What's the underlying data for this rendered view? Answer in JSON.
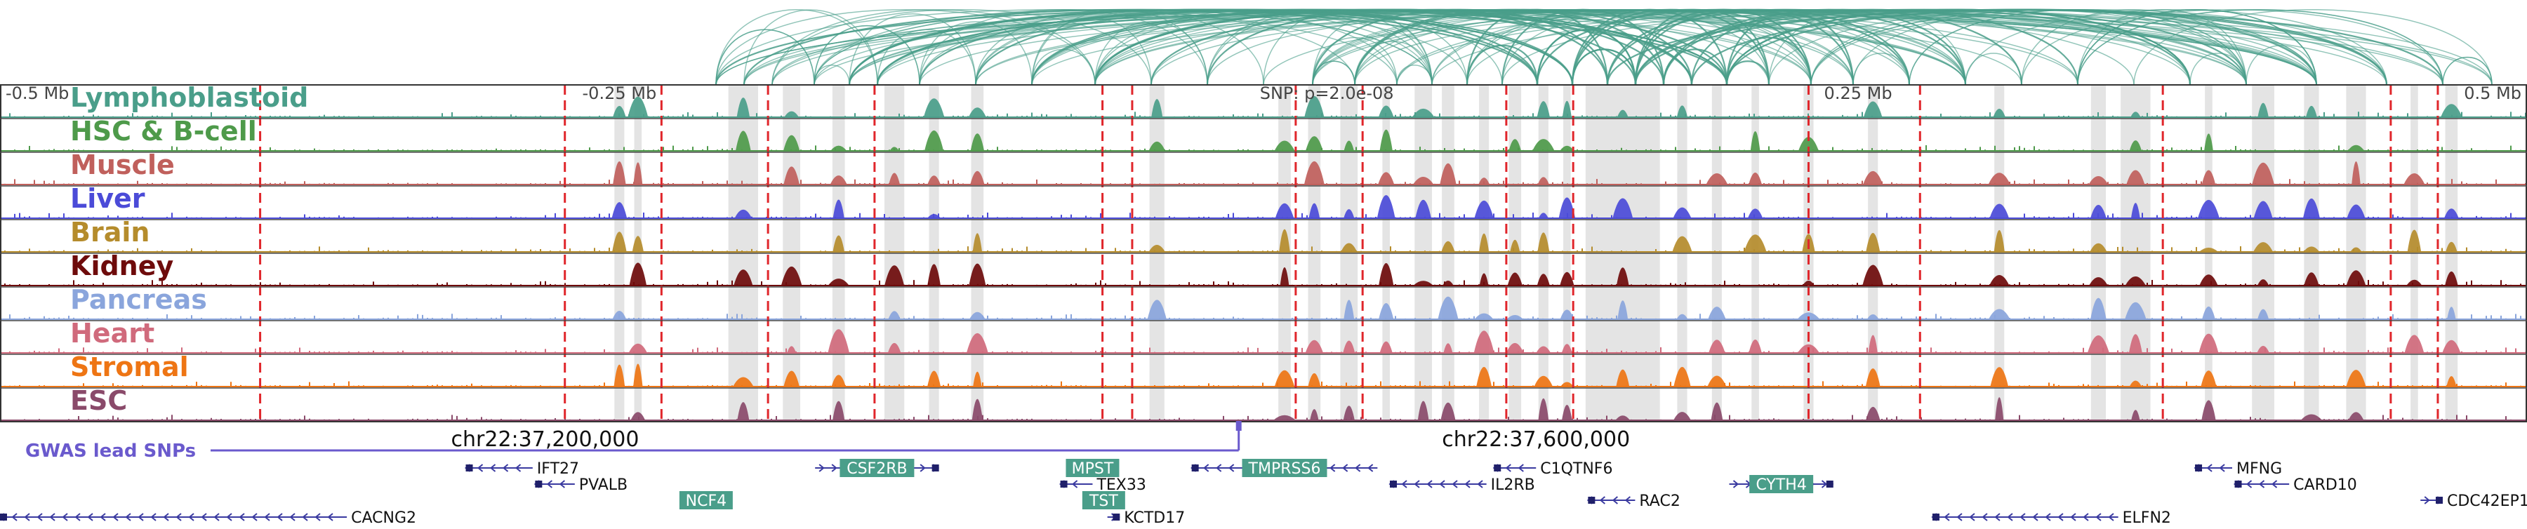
{
  "chart_data": {
    "type": "genome-browser",
    "region": {
      "chrom": "chr22",
      "start": 36980000,
      "end": 38000000
    },
    "snp": {
      "label": "SNP: p=2.0e-08",
      "position": 37480000
    },
    "scale_labels": [
      {
        "text": "-0.5 Mb",
        "pos": 36980000
      },
      {
        "text": "-0.25 Mb",
        "pos": 37230000
      },
      {
        "text": "0.25 Mb",
        "pos": 37730000
      },
      {
        "text": "0.5 Mb",
        "pos": 37980000
      }
    ],
    "coordinate_labels": [
      {
        "text": "chr22:37,200,000",
        "pos": 37200000
      },
      {
        "text": "chr22:37,600,000",
        "pos": 37600000
      }
    ],
    "tracks": [
      {
        "name": "Lymphoblastoid",
        "color": "#4a9e8a"
      },
      {
        "name": "HSC & B-cell",
        "color": "#4e9a4a"
      },
      {
        "name": "Muscle",
        "color": "#c0605c"
      },
      {
        "name": "Liver",
        "color": "#4b4bd8"
      },
      {
        "name": "Brain",
        "color": "#b58c2c"
      },
      {
        "name": "Kidney",
        "color": "#6e0b0b"
      },
      {
        "name": "Pancreas",
        "color": "#8aa5dc"
      },
      {
        "name": "Heart",
        "color": "#d06a7c"
      },
      {
        "name": "Stromal",
        "color": "#ee7514"
      },
      {
        "name": "ESC",
        "color": "#8a4a6a"
      }
    ],
    "gwas_label": "GWAS lead SNPs",
    "gwas_color": "#6a5acd",
    "arc_color": "#4a9e8a",
    "red_dash_positions": [
      37085000,
      37208000,
      37247000,
      37290000,
      37333000,
      37425000,
      37437000,
      37503000,
      37530000,
      37588000,
      37615000,
      37710000,
      37755000,
      37853000,
      37945000,
      37964000
    ],
    "gray_bands": [
      [
        37228000,
        37232000
      ],
      [
        37236000,
        37239000
      ],
      [
        37274000,
        37286000
      ],
      [
        37296000,
        37303000
      ],
      [
        37316000,
        37321000
      ],
      [
        37337000,
        37345000
      ],
      [
        37355000,
        37359000
      ],
      [
        37372000,
        37377000
      ],
      [
        37444000,
        37450000
      ],
      [
        37496000,
        37501000
      ],
      [
        37508000,
        37513000
      ],
      [
        37521000,
        37528000
      ],
      [
        37538000,
        37541000
      ],
      [
        37551000,
        37558000
      ],
      [
        37562000,
        37567000
      ],
      [
        37577000,
        37581000
      ],
      [
        37589000,
        37594000
      ],
      [
        37601000,
        37605000
      ],
      [
        37611000,
        37614000
      ],
      [
        37620000,
        37650000
      ],
      [
        37657000,
        37661000
      ],
      [
        37671000,
        37675000
      ],
      [
        37687000,
        37690000
      ],
      [
        37708000,
        37712000
      ],
      [
        37734000,
        37738000
      ],
      [
        37785000,
        37789000
      ],
      [
        37824000,
        37830000
      ],
      [
        37836000,
        37848000
      ],
      [
        37870000,
        37873000
      ],
      [
        37889000,
        37898000
      ],
      [
        37910000,
        37916000
      ],
      [
        37927000,
        37935000
      ],
      [
        37953000,
        37956000
      ],
      [
        37967000,
        37972000
      ]
    ],
    "genes": [
      {
        "name": "IFT27",
        "start": 37168000,
        "end": 37195000,
        "strand": "-",
        "row": 0,
        "label": "right",
        "highlight": false
      },
      {
        "name": "CSF2RB",
        "start": 37309000,
        "end": 37359000,
        "strand": "+",
        "row": 0,
        "label": "box",
        "highlight": true
      },
      {
        "name": "MPST",
        "start": 37415000,
        "end": 37427000,
        "strand": "+",
        "row": 0,
        "label": "box",
        "highlight": true
      },
      {
        "name": "TMPRSS6",
        "start": 37461000,
        "end": 37536000,
        "strand": "-",
        "row": 0,
        "label": "box",
        "highlight": true
      },
      {
        "name": "C1QTNF6",
        "start": 37583000,
        "end": 37600000,
        "strand": "-",
        "row": 0,
        "label": "right",
        "highlight": false
      },
      {
        "name": "MFNG",
        "start": 37866000,
        "end": 37881000,
        "strand": "-",
        "row": 0,
        "label": "right",
        "highlight": false
      },
      {
        "name": "PVALB",
        "start": 37196000,
        "end": 37212000,
        "strand": "-",
        "row": 1,
        "label": "right",
        "highlight": false
      },
      {
        "name": "TEX33",
        "start": 37408000,
        "end": 37421000,
        "strand": "-",
        "row": 1,
        "label": "right",
        "highlight": false
      },
      {
        "name": "IL2RB",
        "start": 37541000,
        "end": 37580000,
        "strand": "-",
        "row": 1,
        "label": "right",
        "highlight": false
      },
      {
        "name": "CYTH4",
        "start": 37678000,
        "end": 37720000,
        "strand": "+",
        "row": 1,
        "label": "box",
        "highlight": true
      },
      {
        "name": "CARD10",
        "start": 37882000,
        "end": 37904000,
        "strand": "-",
        "row": 1,
        "label": "right",
        "highlight": false
      },
      {
        "name": "NCF4",
        "start": 37257000,
        "end": 37273000,
        "strand": "+",
        "row": 2,
        "label": "box",
        "highlight": true
      },
      {
        "name": "TST",
        "start": 37423000,
        "end": 37428000,
        "strand": "-",
        "row": 2,
        "label": "box",
        "highlight": true
      },
      {
        "name": "RAC2",
        "start": 37621000,
        "end": 37640000,
        "strand": "-",
        "row": 2,
        "label": "right",
        "highlight": false
      },
      {
        "name": "CDC42EP1",
        "start": 37957000,
        "end": 37966000,
        "strand": "+",
        "row": 2,
        "label": "right",
        "highlight": false
      },
      {
        "name": "CACNG2",
        "start": 36980000,
        "end": 37120000,
        "strand": "-",
        "row": 3,
        "label": "right",
        "highlight": false
      },
      {
        "name": "KCTD17",
        "start": 37427000,
        "end": 37432000,
        "strand": "+",
        "row": 3,
        "label": "right",
        "highlight": false
      },
      {
        "name": "ELFN2",
        "start": 37760000,
        "end": 37835000,
        "strand": "-",
        "row": 3,
        "label": "right",
        "highlight": false
      }
    ]
  }
}
